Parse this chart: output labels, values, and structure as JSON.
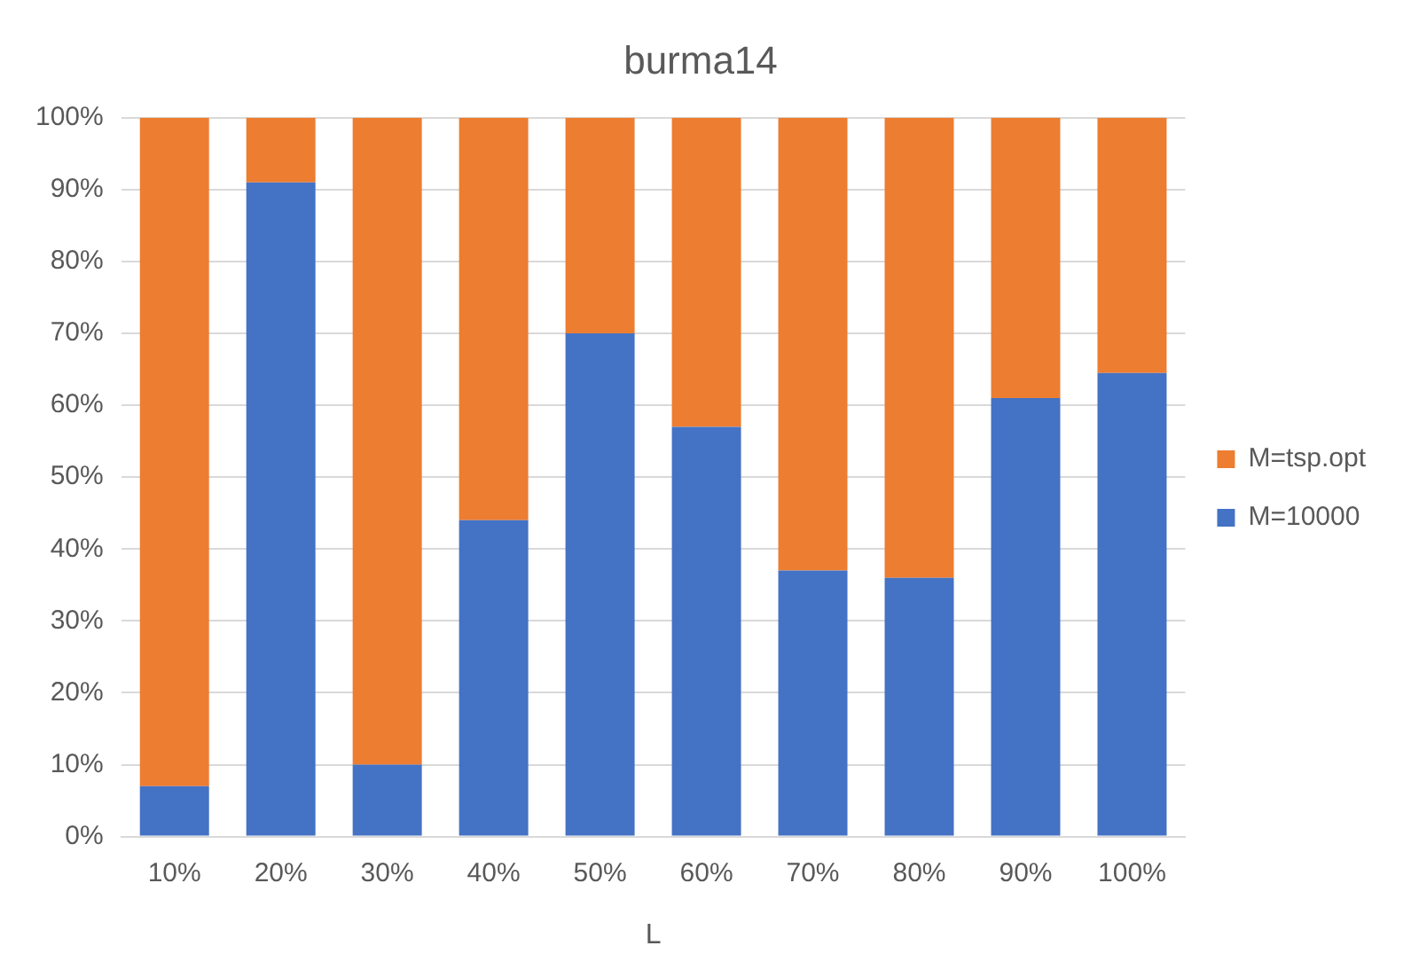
{
  "chart_data": {
    "type": "bar",
    "title": "burma14",
    "xlabel": "L",
    "stacked": true,
    "categories": [
      "10%",
      "20%",
      "30%",
      "40%",
      "50%",
      "60%",
      "70%",
      "80%",
      "90%",
      "100%"
    ],
    "series": [
      {
        "name": "M=10000",
        "color": "#4472c4",
        "values": [
          7,
          91,
          10,
          44,
          70,
          57,
          37,
          36,
          61,
          64.5
        ]
      },
      {
        "name": "M=tsp.opt",
        "color": "#ed7d31",
        "values": [
          93,
          9,
          90,
          56,
          30,
          43,
          63,
          64,
          39,
          35.5
        ]
      }
    ],
    "ylim": [
      0,
      100
    ],
    "yticks": [
      {
        "value": 0,
        "label": "0%"
      },
      {
        "value": 10,
        "label": "10%"
      },
      {
        "value": 20,
        "label": "20%"
      },
      {
        "value": 30,
        "label": "30%"
      },
      {
        "value": 40,
        "label": "40%"
      },
      {
        "value": 50,
        "label": "50%"
      },
      {
        "value": 60,
        "label": "60%"
      },
      {
        "value": 70,
        "label": "70%"
      },
      {
        "value": 80,
        "label": "80%"
      },
      {
        "value": 90,
        "label": "90%"
      },
      {
        "value": 100,
        "label": "100%"
      }
    ],
    "grid": "y",
    "legend": "right"
  }
}
